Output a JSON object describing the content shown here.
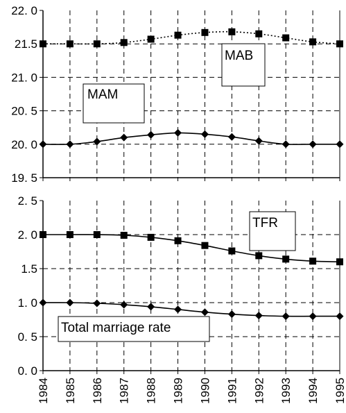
{
  "chart_data": [
    {
      "type": "line",
      "x": [
        1984,
        1985,
        1986,
        1987,
        1988,
        1989,
        1990,
        1991,
        1992,
        1993,
        1994,
        1995
      ],
      "ylim": [
        19.5,
        22.0
      ],
      "yticks": [
        "19. 5",
        "20. 0",
        "20. 5",
        "21. 0",
        "21.5",
        "22. 0"
      ],
      "grid": true,
      "series": [
        {
          "name": "MAB",
          "marker": "square",
          "line_style": "dotted",
          "values": [
            21.5,
            21.5,
            21.5,
            21.52,
            21.57,
            21.63,
            21.67,
            21.68,
            21.65,
            21.59,
            21.53,
            21.5
          ]
        },
        {
          "name": "MAM",
          "marker": "diamond",
          "line_style": "solid",
          "values": [
            20.0,
            20.0,
            20.04,
            20.1,
            20.14,
            20.17,
            20.15,
            20.11,
            20.05,
            20.0,
            20.0,
            20.0
          ]
        }
      ]
    },
    {
      "type": "line",
      "x": [
        1984,
        1985,
        1986,
        1987,
        1988,
        1989,
        1990,
        1991,
        1992,
        1993,
        1994,
        1995
      ],
      "xticks": [
        "1984",
        "1985",
        "1986",
        "1987",
        "1988",
        "1989",
        "1990",
        "1991",
        "1992",
        "1993",
        "1994",
        "1995"
      ],
      "ylim": [
        0.0,
        2.5
      ],
      "yticks": [
        "0. 0",
        "0. 5",
        "1. 0",
        "1.5",
        "2. 0",
        "2. 5"
      ],
      "grid": true,
      "series": [
        {
          "name": "TFR",
          "marker": "square",
          "line_style": "solid",
          "values": [
            2.0,
            2.0,
            2.0,
            1.99,
            1.96,
            1.91,
            1.84,
            1.76,
            1.69,
            1.64,
            1.61,
            1.6
          ]
        },
        {
          "name": "Total marriage rate",
          "marker": "diamond",
          "line_style": "solid",
          "values": [
            1.0,
            1.0,
            0.99,
            0.97,
            0.94,
            0.9,
            0.86,
            0.83,
            0.81,
            0.8,
            0.8,
            0.8
          ]
        }
      ]
    }
  ]
}
